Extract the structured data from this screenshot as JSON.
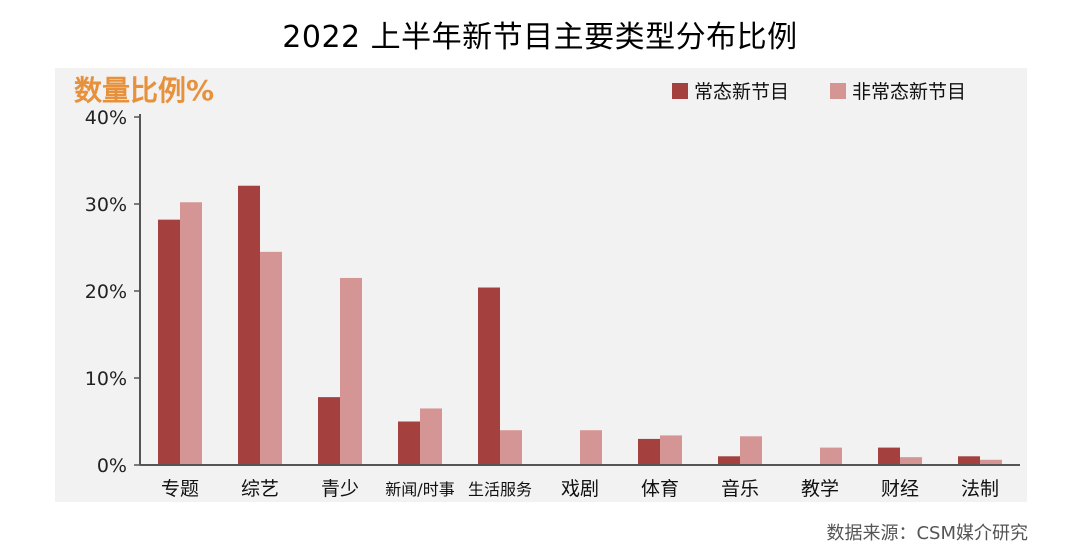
{
  "page": {
    "title": "2022 上半年新节目主要类型分布比例",
    "source": "数据来源：CSM媒介研究"
  },
  "chart_data": {
    "type": "bar",
    "ylabel": "数量比例%",
    "ylim": [
      0,
      40
    ],
    "yticks": [
      "0%",
      "10%",
      "20%",
      "30%",
      "40%"
    ],
    "ytick_values": [
      0,
      10,
      20,
      30,
      40
    ],
    "grid": false,
    "legend_position": "top-right",
    "categories": [
      "专题",
      "综艺",
      "青少",
      "新闻/时事",
      "生活服务",
      "戏剧",
      "体育",
      "音乐",
      "教学",
      "财经",
      "法制"
    ],
    "series": [
      {
        "name": "常态新节目",
        "color": "#a4403d",
        "values": [
          28.2,
          32.1,
          7.8,
          5.0,
          20.4,
          0,
          3.0,
          1.0,
          0,
          2.0,
          1.0
        ]
      },
      {
        "name": "非常态新节目",
        "color": "#d69595",
        "values": [
          30.2,
          24.5,
          21.5,
          6.5,
          4.0,
          4.0,
          3.4,
          3.3,
          2.0,
          0.9,
          0.6
        ]
      }
    ]
  }
}
